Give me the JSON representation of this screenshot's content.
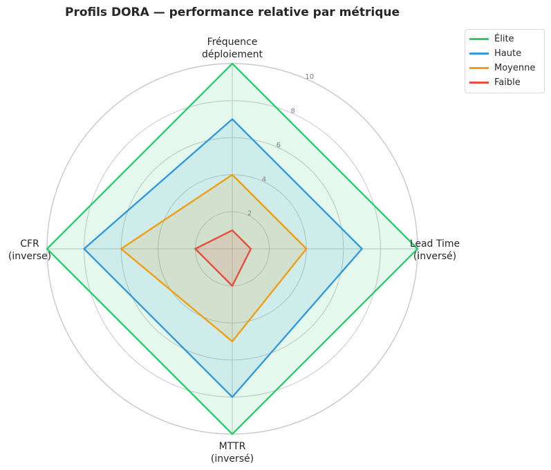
{
  "chart_data": {
    "type": "radar",
    "title": "Profils DORA — performance relative par métrique",
    "axes": [
      {
        "id": "freq",
        "lines": [
          "Fréquence",
          "déploiement"
        ]
      },
      {
        "id": "lead",
        "lines": [
          "Lead Time",
          "(inversé)"
        ]
      },
      {
        "id": "mttr",
        "lines": [
          "MTTR",
          "(inversé)"
        ]
      },
      {
        "id": "cfr",
        "lines": [
          "CFR",
          "(inverse)"
        ]
      }
    ],
    "rlim": [
      0,
      10
    ],
    "rticks": [
      2,
      4,
      6,
      8,
      10
    ],
    "grid": true,
    "legend_position": "upper-right outside",
    "series": [
      {
        "name": "Élite",
        "color": "#2ecc71",
        "values": [
          10,
          10,
          10,
          10
        ]
      },
      {
        "name": "Haute",
        "color": "#3498db",
        "values": [
          7,
          7,
          8,
          8
        ]
      },
      {
        "name": "Moyenne",
        "color": "#f39c12",
        "values": [
          4,
          4,
          5,
          6
        ]
      },
      {
        "name": "Faible",
        "color": "#e74c3c",
        "values": [
          1,
          1,
          2,
          2
        ]
      }
    ]
  }
}
